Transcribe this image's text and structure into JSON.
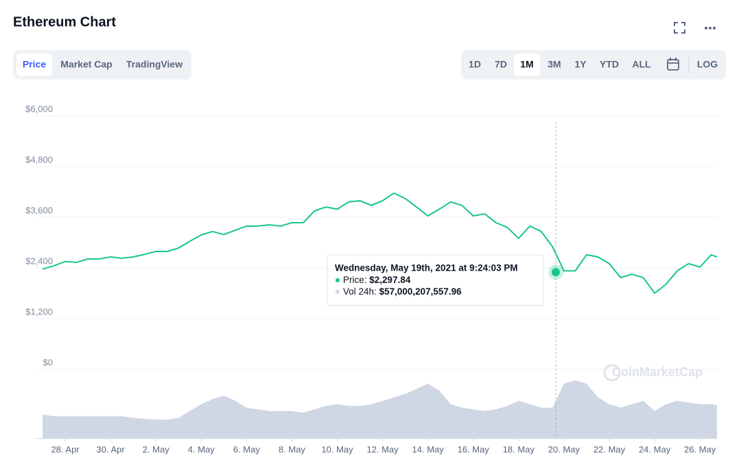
{
  "header": {
    "title": "Ethereum Chart"
  },
  "tabs": [
    "Price",
    "Market Cap",
    "TradingView"
  ],
  "ranges": [
    "1D",
    "7D",
    "1M",
    "3M",
    "1Y",
    "YTD",
    "ALL"
  ],
  "log": "LOG",
  "watermark": "CoinMarketCap",
  "chart_data": {
    "type": "line",
    "categories": [
      null,
      null,
      "28. Apr",
      null,
      null,
      null,
      "30. Apr",
      null,
      null,
      null,
      "2. May",
      null,
      null,
      null,
      "4. May",
      null,
      null,
      null,
      "6. May",
      null,
      null,
      null,
      "8. May",
      null,
      null,
      null,
      "10. May",
      null,
      null,
      null,
      "12. May",
      null,
      null,
      null,
      "14. May",
      null,
      null,
      null,
      "16. May",
      null,
      null,
      null,
      "18. May",
      null,
      null,
      null,
      "20. May",
      null,
      null,
      null,
      "22. May",
      null,
      null,
      null,
      "24. May",
      null,
      null,
      null,
      "26. May",
      null,
      null
    ],
    "values": [
      2370,
      2450,
      2550,
      2530,
      2610,
      2610,
      2660,
      2630,
      2660,
      2720,
      2790,
      2790,
      2870,
      3030,
      3180,
      3260,
      3190,
      3290,
      3390,
      3390,
      3420,
      3390,
      3470,
      3470,
      3750,
      3840,
      3790,
      3960,
      3990,
      3880,
      3990,
      4170,
      4040,
      3840,
      3630,
      3790,
      3960,
      3880,
      3630,
      3680,
      3470,
      3360,
      3100,
      3390,
      3260,
      2900,
      2330,
      2330,
      2710,
      2660,
      2500,
      2170,
      2250,
      2170,
      1800,
      2010,
      2330,
      2500,
      2420,
      2710,
      2610
    ],
    "color": "#16c784",
    "volume": {
      "color": "#cfd6e4",
      "values": [
        28,
        26,
        26,
        26,
        26,
        26,
        26,
        26,
        24,
        23,
        22,
        22,
        24,
        32,
        40,
        46,
        50,
        44,
        36,
        34,
        32,
        32,
        32,
        30,
        34,
        38,
        40,
        38,
        38,
        40,
        44,
        48,
        52,
        58,
        64,
        56,
        40,
        36,
        34,
        32,
        34,
        38,
        44,
        40,
        36,
        36,
        64,
        68,
        64,
        48,
        40,
        36,
        40,
        44,
        32,
        40,
        44,
        42,
        40,
        40,
        38
      ]
    },
    "ylim": [
      0,
      6000
    ],
    "yticks": [
      {
        "value": 0,
        "label": "$0"
      },
      {
        "value": 1200,
        "label": "$1,200"
      },
      {
        "value": 2400,
        "label": "$2,400"
      },
      {
        "value": 3600,
        "label": "$3,600"
      },
      {
        "value": 4800,
        "label": "$4,800"
      },
      {
        "value": 6000,
        "label": "$6,000"
      }
    ],
    "grid": true,
    "tooltip": {
      "title": "Wednesday, May 19th, 2021 at 9:24:03 PM",
      "rows": [
        {
          "label": "Price:",
          "value": {
            "value": 2297.84,
            "label": "$2,297.84"
          }
        },
        {
          "label": "Vol 24h:",
          "value": {
            "value": 57000207557.96,
            "label": "$57,000,207,557.96"
          }
        }
      ]
    }
  }
}
